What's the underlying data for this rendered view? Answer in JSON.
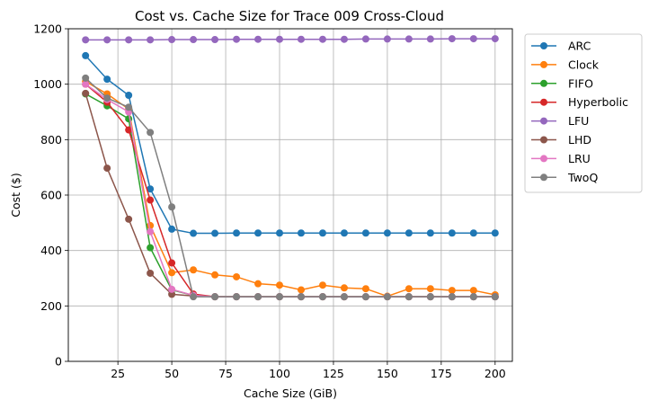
{
  "chart_data": {
    "type": "line",
    "title": "Cost vs. Cache Size for Trace 009 Cross-Cloud",
    "xlabel": "Cache Size (GiB)",
    "ylabel": "Cost ($)",
    "xlim": [
      2,
      208
    ],
    "ylim": [
      0,
      1200
    ],
    "xticks": [
      25,
      50,
      75,
      100,
      125,
      150,
      175,
      200
    ],
    "yticks": [
      0,
      200,
      400,
      600,
      800,
      1000,
      1200
    ],
    "grid": true,
    "legend_position": "outside-right-top",
    "x": [
      10,
      20,
      30,
      40,
      50,
      60,
      70,
      80,
      90,
      100,
      110,
      120,
      130,
      140,
      150,
      160,
      170,
      180,
      190,
      200
    ],
    "series": [
      {
        "name": "ARC",
        "color": "#1f77b4",
        "values": [
          1103,
          1018,
          960,
          622,
          477,
          462,
          462,
          463,
          463,
          463,
          463,
          463,
          463,
          463,
          463,
          463,
          463,
          463,
          463,
          463
        ]
      },
      {
        "name": "Clock",
        "color": "#ff7f0e",
        "values": [
          1010,
          965,
          910,
          490,
          320,
          330,
          312,
          305,
          280,
          275,
          258,
          275,
          265,
          262,
          235,
          262,
          262,
          256,
          256,
          240
        ]
      },
      {
        "name": "FIFO",
        "color": "#2ca02c",
        "values": [
          965,
          922,
          875,
          410,
          258,
          238,
          233,
          233,
          233,
          233,
          233,
          233,
          233,
          233,
          233,
          233,
          233,
          233,
          233,
          233
        ]
      },
      {
        "name": "Hyperbolic",
        "color": "#d62728",
        "values": [
          1000,
          935,
          835,
          582,
          355,
          243,
          233,
          233,
          233,
          233,
          233,
          233,
          233,
          233,
          233,
          233,
          233,
          233,
          233,
          233
        ]
      },
      {
        "name": "LFU",
        "color": "#9467bd",
        "values": [
          1160,
          1160,
          1160,
          1160,
          1161,
          1161,
          1161,
          1162,
          1162,
          1162,
          1162,
          1162,
          1162,
          1163,
          1163,
          1163,
          1163,
          1164,
          1164,
          1164
        ]
      },
      {
        "name": "LHD",
        "color": "#8c564b",
        "values": [
          967,
          697,
          513,
          318,
          242,
          236,
          233,
          233,
          233,
          233,
          233,
          233,
          233,
          233,
          233,
          233,
          233,
          233,
          233,
          233
        ]
      },
      {
        "name": "LRU",
        "color": "#e377c2",
        "values": [
          1000,
          945,
          900,
          468,
          260,
          238,
          233,
          233,
          233,
          233,
          233,
          233,
          233,
          233,
          233,
          233,
          233,
          233,
          233,
          233
        ]
      },
      {
        "name": "TwoQ",
        "color": "#7f7f7f",
        "values": [
          1022,
          950,
          917,
          826,
          557,
          233,
          233,
          233,
          233,
          233,
          233,
          233,
          233,
          233,
          233,
          233,
          233,
          233,
          233,
          233
        ]
      }
    ]
  }
}
